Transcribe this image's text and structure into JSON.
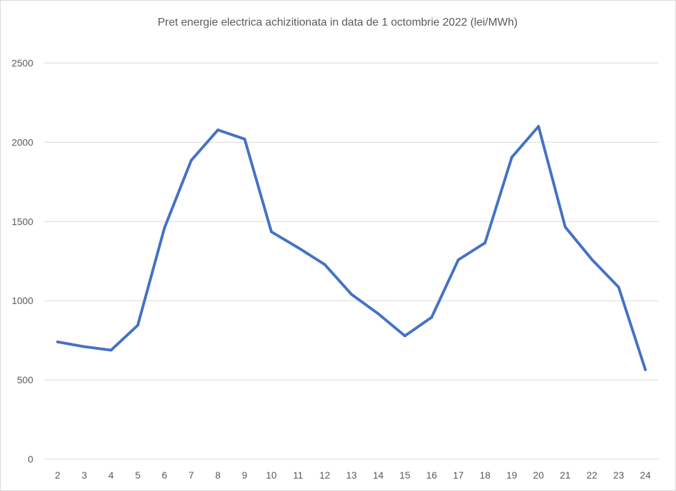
{
  "chart_data": {
    "type": "line",
    "title": "Pret energie electrica  achizitionata in data de 1 octombrie 2022 (lei/MWh)",
    "xlabel": "",
    "ylabel": "",
    "categories": [
      "2",
      "3",
      "4",
      "5",
      "6",
      "7",
      "8",
      "9",
      "10",
      "11",
      "12",
      "13",
      "14",
      "15",
      "16",
      "17",
      "18",
      "19",
      "20",
      "21",
      "22",
      "23",
      "24"
    ],
    "series": [
      {
        "values": [
          740,
          710,
          688,
          845,
          1460,
          1885,
          2078,
          2020,
          1435,
          1335,
          1228,
          1040,
          918,
          778,
          895,
          1258,
          1365,
          1905,
          2100,
          1465,
          1260,
          1085,
          565
        ]
      }
    ],
    "ylim": [
      0,
      2500
    ],
    "yticks": [
      0,
      500,
      1000,
      1500,
      2000,
      2500
    ],
    "grid": true,
    "legend": "none",
    "colors": {
      "line": "#4472c4",
      "grid": "#d9d9d9",
      "text": "#595959"
    }
  }
}
